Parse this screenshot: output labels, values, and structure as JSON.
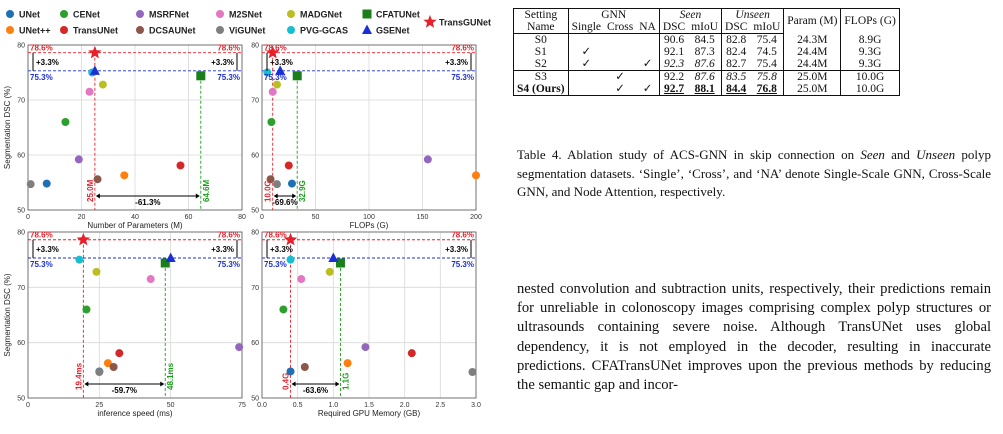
{
  "legend": [
    {
      "name": "UNet",
      "color": "#1f6fb5",
      "marker": "circle"
    },
    {
      "name": "CENet",
      "color": "#2ca02c",
      "marker": "circle"
    },
    {
      "name": "MSRFNet",
      "color": "#9467bd",
      "marker": "circle"
    },
    {
      "name": "M2SNet",
      "color": "#e377c2",
      "marker": "circle"
    },
    {
      "name": "MADGNet",
      "color": "#bcbd22",
      "marker": "circle"
    },
    {
      "name": "CFATUNet",
      "color": "#1a7f1a",
      "marker": "square"
    },
    {
      "name": "UNet++",
      "color": "#ff7f0e",
      "marker": "circle"
    },
    {
      "name": "TransUNet",
      "color": "#d62728",
      "marker": "circle"
    },
    {
      "name": "DCSAUNet",
      "color": "#8c564b",
      "marker": "circle"
    },
    {
      "name": "ViGUNet",
      "color": "#7f7f7f",
      "marker": "circle"
    },
    {
      "name": "PVG-GCAS",
      "color": "#17becf",
      "marker": "circle"
    },
    {
      "name": "GSENet",
      "color": "#1a2fd6",
      "marker": "triangle"
    },
    {
      "name": "TransGUNet",
      "color": "#e8202a",
      "marker": "star"
    }
  ],
  "chart_data": [
    {
      "type": "scatter",
      "xlabel": "Number of Parameters (M)",
      "ylabel": "Segmentation DSC (%)",
      "xlim": [
        0,
        80
      ],
      "ylim": [
        50,
        80
      ],
      "xticks": [
        "0",
        "20",
        "40",
        "60",
        "80"
      ],
      "yticks": [
        "50",
        "60",
        "70",
        "80"
      ],
      "points": [
        {
          "model": "UNet",
          "x": 7,
          "y": 54.8
        },
        {
          "model": "CENet",
          "x": 14,
          "y": 66.0
        },
        {
          "model": "MSRFNet",
          "x": 19,
          "y": 59.2
        },
        {
          "model": "M2SNet",
          "x": 23,
          "y": 71.5
        },
        {
          "model": "MADGNet",
          "x": 28,
          "y": 72.8
        },
        {
          "model": "CFATUNet",
          "x": 64.6,
          "y": 74.4
        },
        {
          "model": "UNet++",
          "x": 36,
          "y": 56.3
        },
        {
          "model": "TransUNet",
          "x": 57,
          "y": 58.1
        },
        {
          "model": "DCSAUNet",
          "x": 26,
          "y": 55.6
        },
        {
          "model": "ViGUNet",
          "x": 1,
          "y": 54.7
        },
        {
          "model": "PVG-GCAS",
          "x": 24,
          "y": 75.0
        },
        {
          "model": "GSENet",
          "x": 25,
          "y": 75.3
        },
        {
          "model": "TransGUNet",
          "x": 25.0,
          "y": 78.6
        }
      ],
      "top_label": "78.6%",
      "base_label": "75.3%",
      "delta_label": "+3.3%",
      "star_value": "25.0M",
      "ref_value": "64.6M",
      "diff_label": "-61.3%",
      "star_x": 25.0,
      "ref_x": 64.6
    },
    {
      "type": "scatter",
      "xlabel": "FLOPs (G)",
      "ylabel": "",
      "xlim": [
        0,
        200
      ],
      "ylim": [
        50,
        80
      ],
      "xticks": [
        "0",
        "50",
        "100",
        "150",
        "200"
      ],
      "yticks": [
        "50",
        "60",
        "70",
        "80"
      ],
      "points": [
        {
          "model": "UNet",
          "x": 28,
          "y": 54.8
        },
        {
          "model": "CENet",
          "x": 8.8,
          "y": 66.0
        },
        {
          "model": "MSRFNet",
          "x": 155,
          "y": 59.2
        },
        {
          "model": "M2SNet",
          "x": 10,
          "y": 71.5
        },
        {
          "model": "MADGNet",
          "x": 14,
          "y": 72.8
        },
        {
          "model": "CFATUNet",
          "x": 32.9,
          "y": 74.4
        },
        {
          "model": "UNet++",
          "x": 200,
          "y": 56.3
        },
        {
          "model": "TransUNet",
          "x": 25,
          "y": 58.1
        },
        {
          "model": "DCSAUNet",
          "x": 8,
          "y": 55.6
        },
        {
          "model": "ViGUNet",
          "x": 14,
          "y": 54.7
        },
        {
          "model": "PVG-GCAS",
          "x": 5,
          "y": 75.0
        },
        {
          "model": "GSENet",
          "x": 17,
          "y": 75.3
        },
        {
          "model": "TransGUNet",
          "x": 10.0,
          "y": 78.6
        }
      ],
      "top_label": "78.6%",
      "base_label": "75.3%",
      "delta_label": "+3.3%",
      "star_value": "10.0G",
      "ref_value": "32.9G",
      "diff_label": "-69.6%",
      "star_x": 10.0,
      "ref_x": 32.9
    },
    {
      "type": "scatter",
      "xlabel": "inference speed (ms)",
      "ylabel": "Segmentation DSC (%)",
      "xlim": [
        0,
        75
      ],
      "ylim": [
        50,
        80
      ],
      "xticks": [
        "0",
        "25",
        "50",
        "75"
      ],
      "yticks": [
        "50",
        "60",
        "70",
        "80"
      ],
      "points": [
        {
          "model": "UNet",
          "x": 25,
          "y": 54.8
        },
        {
          "model": "CENet",
          "x": 20.5,
          "y": 66.0
        },
        {
          "model": "MSRFNet",
          "x": 74,
          "y": 59.2
        },
        {
          "model": "M2SNet",
          "x": 43,
          "y": 71.5
        },
        {
          "model": "MADGNet",
          "x": 24,
          "y": 72.8
        },
        {
          "model": "CFATUNet",
          "x": 48.1,
          "y": 74.4
        },
        {
          "model": "UNet++",
          "x": 28,
          "y": 56.3
        },
        {
          "model": "TransUNet",
          "x": 32,
          "y": 58.1
        },
        {
          "model": "DCSAUNet",
          "x": 30,
          "y": 55.6
        },
        {
          "model": "ViGUNet",
          "x": 25,
          "y": 54.7
        },
        {
          "model": "PVG-GCAS",
          "x": 18,
          "y": 75.0
        },
        {
          "model": "GSENet",
          "x": 50,
          "y": 75.3
        },
        {
          "model": "TransGUNet",
          "x": 19.4,
          "y": 78.6
        }
      ],
      "top_label": "78.6%",
      "base_label": "75.3%",
      "delta_label": "+3.3%",
      "star_value": "19.4ms",
      "ref_value": "48.1ms",
      "diff_label": "-59.7%",
      "star_x": 19.4,
      "ref_x": 48.1
    },
    {
      "type": "scatter",
      "xlabel": "Required GPU Memory (GB)",
      "ylabel": "",
      "xlim": [
        0,
        3.0
      ],
      "ylim": [
        50,
        80
      ],
      "xticks": [
        "0.0",
        "0.5",
        "1.0",
        "1.5",
        "2.0",
        "2.5",
        "3.0"
      ],
      "yticks": [
        "50",
        "60",
        "70",
        "80"
      ],
      "points": [
        {
          "model": "UNet",
          "x": 0.4,
          "y": 54.8
        },
        {
          "model": "CENet",
          "x": 0.3,
          "y": 66.0
        },
        {
          "model": "MSRFNet",
          "x": 1.45,
          "y": 59.2
        },
        {
          "model": "M2SNet",
          "x": 0.55,
          "y": 71.5
        },
        {
          "model": "MADGNet",
          "x": 0.95,
          "y": 72.8
        },
        {
          "model": "CFATUNet",
          "x": 1.1,
          "y": 74.4
        },
        {
          "model": "UNet++",
          "x": 1.2,
          "y": 56.3
        },
        {
          "model": "TransUNet",
          "x": 2.1,
          "y": 58.1
        },
        {
          "model": "DCSAUNet",
          "x": 0.6,
          "y": 55.6
        },
        {
          "model": "ViGUNet",
          "x": 2.95,
          "y": 54.7
        },
        {
          "model": "PVG-GCAS",
          "x": 0.4,
          "y": 75.0
        },
        {
          "model": "GSENet",
          "x": 1.0,
          "y": 75.3
        },
        {
          "model": "TransGUNet",
          "x": 0.4,
          "y": 78.6
        }
      ],
      "top_label": "78.6%",
      "base_label": "75.3%",
      "delta_label": "+3.3%",
      "star_value": "0.4G",
      "ref_value": "1.1G",
      "diff_label": "-63.6%",
      "star_x": 0.4,
      "ref_x": 1.1
    }
  ],
  "table": {
    "header1": [
      "Setting",
      "GNN",
      "Seen",
      "Unseen",
      "Param (M)",
      "FLOPs (G)"
    ],
    "header2": [
      "Name",
      "Single",
      "Cross",
      "NA",
      "DSC",
      "mIoU",
      "DSC",
      "mIoU"
    ],
    "rows": [
      {
        "name": "S0",
        "single": "",
        "cross": "",
        "na": "",
        "sdsc": "90.6",
        "smiou": "84.5",
        "udsc": "82.8",
        "umiou": "75.4",
        "param": "24.3M",
        "flops": "8.9G"
      },
      {
        "name": "S1",
        "single": "✓",
        "cross": "",
        "na": "",
        "sdsc": "92.1",
        "smiou": "87.3",
        "udsc": "82.4",
        "umiou": "74.5",
        "param": "24.4M",
        "flops": "9.3G"
      },
      {
        "name": "S2",
        "single": "✓",
        "cross": "",
        "na": "✓",
        "sdsc": "92.3",
        "smiou": "87.6",
        "udsc": "82.7",
        "umiou": "75.4",
        "param": "24.4M",
        "flops": "9.3G"
      },
      {
        "name": "S3",
        "single": "",
        "cross": "✓",
        "na": "",
        "sdsc": "92.2",
        "smiou": "87.6",
        "udsc": "83.5",
        "umiou": "75.8",
        "param": "25.0M",
        "flops": "10.0G"
      },
      {
        "name": "S4 (Ours)",
        "single": "",
        "cross": "✓",
        "na": "✓",
        "sdsc": "92.7",
        "smiou": "88.1",
        "udsc": "84.4",
        "umiou": "76.8",
        "param": "25.0M",
        "flops": "10.0G"
      }
    ]
  },
  "caption": {
    "prefix": "Table 4. Ablation study of ACS-GNN in skip connection on ",
    "seen": "Seen",
    "mid": " and ",
    "unseen": "Unseen",
    "suffix": " polyp segmentation datasets. ‘Single’, ‘Cross’, and ‘NA’ denote Single-Scale GNN, Cross-Scale GNN, and Node Attention, respectively."
  },
  "body_text": "nested convolution and subtraction units, respectively, their predictions remain for unreliable in colonoscopy images comprising complex polyp structures or ultrasounds containing severe noise. Although TransUNet uses global dependency, it is not employed in the decoder, resulting in inaccurate predictions. CFATransUNet improves upon the previous methods by reducing the semantic gap and incor-",
  "colors": {
    "red": "#e8202a",
    "blue": "#1a2fd6",
    "green": "#1a9f1a",
    "grid": "#d9d9d9"
  }
}
